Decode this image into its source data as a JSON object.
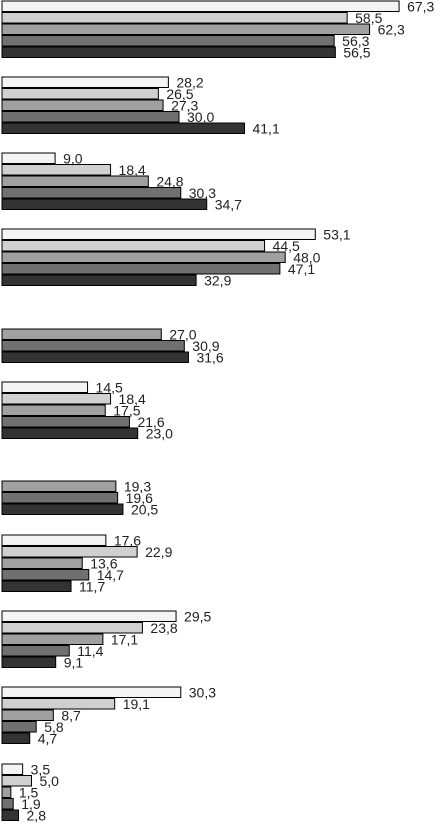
{
  "chart_data": {
    "type": "bar",
    "orientation": "horizontal",
    "title": "",
    "xlabel": "",
    "ylabel": "",
    "xlim": [
      0,
      67.3
    ],
    "grid": false,
    "legend": "none",
    "categories": [
      "",
      "",
      "",
      "",
      "",
      "",
      "",
      "",
      "",
      "",
      ""
    ],
    "series": [
      {
        "color": "#f4f4f4",
        "values": [
          67.3,
          28.2,
          9.0,
          53.1,
          null,
          14.5,
          null,
          17.6,
          29.5,
          30.3,
          3.5
        ],
        "labels": [
          "67,3",
          "28,2",
          "9,0",
          "53,1",
          "",
          "14,5",
          "",
          "17,6",
          "29,5",
          "30,3",
          "3,5"
        ]
      },
      {
        "color": "#d0d0d0",
        "values": [
          58.5,
          26.5,
          18.4,
          44.5,
          null,
          18.4,
          null,
          22.9,
          23.8,
          19.1,
          5.0
        ],
        "labels": [
          "58,5",
          "26,5",
          "18,4",
          "44,5",
          "",
          "18,4",
          "",
          "22,9",
          "23,8",
          "19,1",
          "5,0"
        ]
      },
      {
        "color": "#a0a0a0",
        "values": [
          62.3,
          27.3,
          24.8,
          48.0,
          27.0,
          17.5,
          19.3,
          13.6,
          17.1,
          8.7,
          1.5
        ],
        "labels": [
          "62,3",
          "27,3",
          "24,8",
          "48,0",
          "27,0",
          "17,5",
          "19,3",
          "13,6",
          "17,1",
          "8,7",
          "1,5"
        ]
      },
      {
        "color": "#707070",
        "values": [
          56.3,
          30.0,
          30.3,
          47.1,
          30.9,
          21.6,
          19.6,
          14.7,
          11.4,
          5.8,
          1.9
        ],
        "labels": [
          "56,3",
          "30,0",
          "30,3",
          "47,1",
          "30,9",
          "21,6",
          "19,6",
          "14,7",
          "11,4",
          "5,8",
          "1,9"
        ]
      },
      {
        "color": "#333333",
        "values": [
          56.5,
          41.1,
          34.7,
          32.9,
          31.6,
          23.0,
          20.5,
          11.7,
          9.1,
          4.7,
          2.8
        ],
        "labels": [
          "56,5",
          "41,1",
          "34,7",
          "32,9",
          "31,6",
          "23,0",
          "20,5",
          "11,7",
          "9,1",
          "4,7",
          "2,8"
        ]
      }
    ]
  }
}
